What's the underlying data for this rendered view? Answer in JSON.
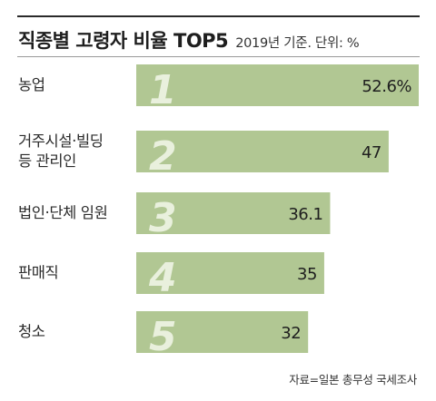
{
  "header": {
    "title": "직종별 고령자 비율 TOP5",
    "subtitle": "2019년 기준. 단위: %"
  },
  "source": "자료=일본 총무성 국세조사",
  "colors": {
    "bar": "#b1c793",
    "rank_number": "#e9f0dd",
    "text": "#222222"
  },
  "chart_data": {
    "type": "bar",
    "orientation": "horizontal",
    "title": "직종별 고령자 비율 TOP5",
    "subtitle": "2019년 기준. 단위: %",
    "categories": [
      "농업",
      "거주시설·빌딩\n등 관리인",
      "법인·단체 임원",
      "판매직",
      "청소"
    ],
    "ranks": [
      "1",
      "2",
      "3",
      "4",
      "5"
    ],
    "values": [
      52.6,
      47,
      36.1,
      35,
      32
    ],
    "value_labels": [
      "52.6%",
      "47",
      "36.1",
      "35",
      "32"
    ],
    "xlim": [
      0,
      52.6
    ],
    "grid": false,
    "legend": "none"
  }
}
